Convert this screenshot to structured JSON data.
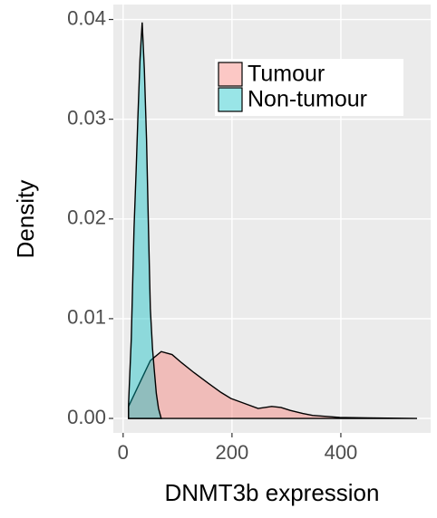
{
  "chart_data": {
    "type": "density",
    "xlabel": "DNMT3b expression",
    "ylabel": "Density",
    "xlim": [
      -18,
      565
    ],
    "ylim": [
      -0.00145,
      0.0415
    ],
    "xticks": [
      0,
      200,
      400
    ],
    "yticks": [
      {
        "value": 0,
        "label": "0.00"
      },
      {
        "value": 0.01,
        "label": "0.01"
      },
      {
        "value": 0.02,
        "label": "0.02"
      },
      {
        "value": 0.03,
        "label": "0.03"
      },
      {
        "value": 0.04,
        "label": "0.04"
      }
    ],
    "grid": true,
    "legend": "top-right",
    "series": [
      {
        "name": "Tumour",
        "color": "#F8766D",
        "x": [
          10,
          30,
          50,
          70,
          90,
          107,
          130,
          157,
          180,
          198,
          223,
          248,
          273,
          290,
          307,
          330,
          348,
          398,
          450,
          540
        ],
        "values": [
          0.0012,
          0.0035,
          0.0058,
          0.0067,
          0.0064,
          0.0056,
          0.0046,
          0.0035,
          0.0026,
          0.002,
          0.0015,
          0.001,
          0.0012,
          0.0011,
          0.0008,
          0.0005,
          0.0003,
          0.0001,
          5e-05,
          0
        ]
      },
      {
        "name": "Non-tumour",
        "color": "#00BFC4",
        "x": [
          10,
          15,
          20,
          24,
          27,
          31,
          35,
          39,
          43,
          47,
          50,
          54,
          57,
          61,
          65,
          70
        ],
        "values": [
          0.0015,
          0.008,
          0.019,
          0.025,
          0.03,
          0.036,
          0.0397,
          0.035,
          0.028,
          0.018,
          0.011,
          0.007,
          0.005,
          0.0025,
          0.001,
          0
        ]
      }
    ]
  }
}
